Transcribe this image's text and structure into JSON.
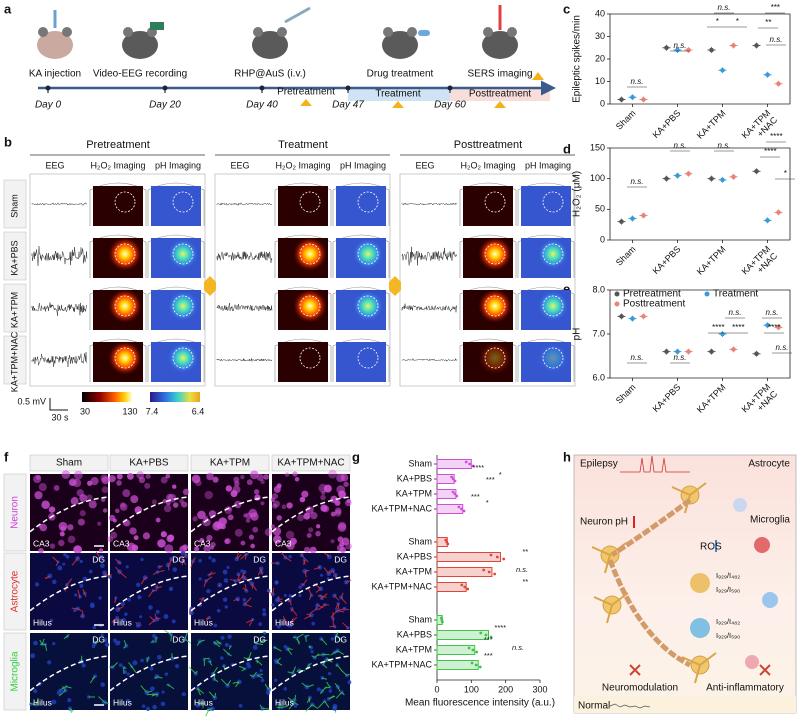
{
  "panel_letters": [
    "a",
    "b",
    "c",
    "d",
    "e",
    "f",
    "g",
    "h"
  ],
  "a": {
    "events": [
      "KA injection",
      "Video-EEG recording",
      "RHP@AuS (i.v.)",
      "Drug treatment",
      "SERS imaging"
    ],
    "days": [
      "Day 0",
      "Day 20",
      "Day 40",
      "Day 47",
      "Day 60"
    ],
    "phases": [
      "Pretreatment",
      "Treatment",
      "Posttreatment"
    ]
  },
  "b": {
    "sections": [
      "Pretreatment",
      "Treatment",
      "Posttreatment"
    ],
    "columns": [
      "EEG",
      "H₂O₂ Imaging",
      "pH Imaging"
    ],
    "rows": [
      "Sham",
      "KA+PBS",
      "KA+TPM",
      "KA+TPM+NAC"
    ],
    "scale_voltage": "0.5 mV",
    "scale_time": "30 s",
    "colorbar_h2o2": [
      30,
      130
    ],
    "colorbar_ph": [
      7.4,
      6.4
    ]
  },
  "chart_data": [
    {
      "type": "dot",
      "ylabel": "Epileptic spikes/min",
      "categories": [
        "Sham",
        "KA+PBS",
        "KA+TPM",
        "KA+TPM\n+NAC"
      ],
      "series": [
        {
          "color": "#555555",
          "values": [
            2,
            25,
            24,
            26
          ]
        },
        {
          "color": "#3a9ad9",
          "values": [
            3,
            24,
            15,
            13
          ]
        },
        {
          "color": "#e8827a",
          "values": [
            2,
            24,
            26,
            9
          ]
        }
      ],
      "ylim": [
        0,
        40
      ],
      "yticks": [
        0,
        10,
        20,
        30,
        40
      ],
      "annotations": [
        "n.s.",
        "n.s.",
        "n.s.",
        "*",
        "*",
        "***",
        "**",
        "n.s."
      ]
    },
    {
      "type": "dot",
      "ylabel": "H₂O₂ (μM)",
      "categories": [
        "Sham",
        "KA+PBS",
        "KA+TPM",
        "KA+TPM\n+NAC"
      ],
      "series": [
        {
          "color": "#555555",
          "values": [
            30,
            100,
            100,
            112
          ]
        },
        {
          "color": "#3a9ad9",
          "values": [
            35,
            105,
            98,
            32
          ]
        },
        {
          "color": "#e8827a",
          "values": [
            40,
            108,
            103,
            45
          ]
        }
      ],
      "ylim": [
        0,
        150
      ],
      "yticks": [
        0,
        50,
        100,
        150
      ],
      "annotations": [
        "n.s.",
        "n.s.",
        "n.s.",
        "****",
        "****",
        "*"
      ]
    },
    {
      "type": "dot",
      "ylabel": "pH",
      "legend": "top",
      "categories": [
        "Sham",
        "KA+PBS",
        "KA+TPM",
        "KA+TPM\n+NAC"
      ],
      "series": [
        {
          "name": "Pretreatment",
          "color": "#555555",
          "values": [
            7.4,
            6.6,
            6.6,
            6.55
          ]
        },
        {
          "name": "Treatment",
          "color": "#3a9ad9",
          "values": [
            7.35,
            6.6,
            7.0,
            7.2
          ]
        },
        {
          "name": "Posttreatment",
          "color": "#e8827a",
          "values": [
            7.4,
            6.6,
            6.65,
            7.15
          ]
        }
      ],
      "ylim": [
        6.0,
        8.0
      ],
      "yticks": [
        {
          "value": 6,
          "label": "6.0"
        },
        {
          "value": 7,
          "label": "7.0"
        },
        {
          "value": 8,
          "label": "8.0"
        }
      ],
      "annotations": [
        "n.s.",
        "n.s.",
        "n.s.",
        "****",
        "****",
        "n.s.",
        "****",
        "n.s."
      ]
    },
    {
      "type": "hbar",
      "xlabel": "Mean fluorescence intensity (a.u.)",
      "series": [
        {
          "color": "#d04fd6",
          "categories": [
            "Sham",
            "KA+PBS",
            "KA+TPM",
            "KA+TPM+NAC"
          ],
          "values": [
            100,
            50,
            55,
            75
          ]
        },
        {
          "color": "#e0463a",
          "categories": [
            "Sham",
            "KA+PBS",
            "KA+TPM",
            "KA+TPM+NAC"
          ],
          "values": [
            30,
            185,
            160,
            85
          ]
        },
        {
          "color": "#3fc44a",
          "categories": [
            "Sham",
            "KA+PBS",
            "KA+TPM",
            "KA+TPM+NAC"
          ],
          "values": [
            15,
            150,
            110,
            120
          ]
        }
      ],
      "xlim": [
        0,
        300
      ],
      "xticks": [
        0,
        100,
        200,
        300
      ],
      "annotations": [
        "****",
        "***",
        "***",
        "*",
        "*",
        "**",
        "**",
        "n.s.",
        "****",
        "***",
        "***",
        "n.s."
      ]
    }
  ],
  "f": {
    "columns": [
      "Sham",
      "KA+PBS",
      "KA+TPM",
      "KA+TPM+NAC"
    ],
    "rows": [
      "Neuron",
      "Astrocyte",
      "Microglia"
    ],
    "regions": [
      [
        "CA3"
      ],
      [
        "DG",
        "Hilus"
      ],
      [
        "DG",
        "Hilus"
      ]
    ]
  },
  "h": {
    "labels": [
      "Epilepsy",
      "Astrocyte",
      "Neuron",
      "Microglia",
      "pH",
      "ROS",
      "I₉₂₉/I₄₈₂",
      "I₉₂₉/I₅₉₀",
      "I₉₂₉/I₄₈₂",
      "I₉₂₉/I₅₉₀",
      "Neuromodulation",
      "Anti-inflammatory",
      "Normal"
    ]
  }
}
